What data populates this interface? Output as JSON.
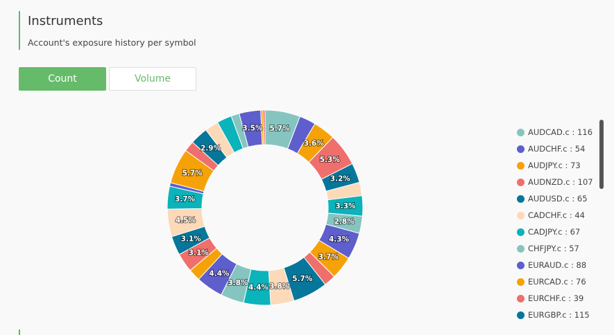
{
  "header": {
    "title": "Instruments",
    "subtitle": "Account's exposure history per symbol"
  },
  "tabs": [
    {
      "label": "Count",
      "active": true
    },
    {
      "label": "Volume",
      "active": false
    }
  ],
  "chart_data": {
    "type": "pie",
    "variant": "donut",
    "legend_position": "right",
    "slices": [
      {
        "label": "AUDCAD.c",
        "value": 116,
        "pct": "5.7%",
        "color": "#86c5bf"
      },
      {
        "label": "AUDCHF.c",
        "value": 54,
        "pct": "",
        "color": "#5e5ecc"
      },
      {
        "label": "AUDJPY.c",
        "value": 73,
        "pct": "3.6%",
        "color": "#f5a209"
      },
      {
        "label": "AUDNZD.c",
        "value": 107,
        "pct": "5.3%",
        "color": "#ef6f6c"
      },
      {
        "label": "AUDUSD.c",
        "value": 65,
        "pct": "3.2%",
        "color": "#06779a"
      },
      {
        "label": "CADCHF.c",
        "value": 44,
        "pct": "",
        "color": "#fcd9b9"
      },
      {
        "label": "CADJPY.c",
        "value": 67,
        "pct": "3.3%",
        "color": "#0bb3bb"
      },
      {
        "label": "CHFJPY.c",
        "value": 57,
        "pct": "2.8%",
        "color": "#86c5bf"
      },
      {
        "label": "EURAUD.c",
        "value": 88,
        "pct": "4.3%",
        "color": "#5e5ecc"
      },
      {
        "label": "EURCAD.c",
        "value": 76,
        "pct": "3.7%",
        "color": "#f5a209"
      },
      {
        "label": "EURCHF.c",
        "value": 39,
        "pct": "",
        "color": "#ef6f6c"
      },
      {
        "label": "EURGBP.c",
        "value": 115,
        "pct": "5.7%",
        "color": "#06779a"
      },
      {
        "label": "",
        "value": 77,
        "pct": "3.8%",
        "color": "#fcd9b9"
      },
      {
        "label": "",
        "value": 89,
        "pct": "4.4%",
        "color": "#0bb3bb"
      },
      {
        "label": "",
        "value": 77,
        "pct": "3.8%",
        "color": "#86c5bf"
      },
      {
        "label": "",
        "value": 89,
        "pct": "4.4%",
        "color": "#5e5ecc"
      },
      {
        "label": "",
        "value": 40,
        "pct": "",
        "color": "#f5a209"
      },
      {
        "label": "",
        "value": 63,
        "pct": "3.1%",
        "color": "#ef6f6c"
      },
      {
        "label": "",
        "value": 63,
        "pct": "3.1%",
        "color": "#06779a"
      },
      {
        "label": "",
        "value": 91,
        "pct": "4.5%",
        "color": "#fcd9b9"
      },
      {
        "label": "",
        "value": 75,
        "pct": "3.7%",
        "color": "#0bb3bb"
      },
      {
        "label": "",
        "value": 12,
        "pct": "",
        "color": "#5e5ecc"
      },
      {
        "label": "",
        "value": 116,
        "pct": "5.7%",
        "color": "#f5a209"
      },
      {
        "label": "",
        "value": 35,
        "pct": "",
        "color": "#ef6f6c"
      },
      {
        "label": "",
        "value": 59,
        "pct": "2.9%",
        "color": "#06779a"
      },
      {
        "label": "",
        "value": 45,
        "pct": "",
        "color": "#fcd9b9"
      },
      {
        "label": "",
        "value": 49,
        "pct": "",
        "color": "#0bb3bb"
      },
      {
        "label": "",
        "value": 27,
        "pct": "",
        "color": "#86c5bf"
      },
      {
        "label": "",
        "value": 71,
        "pct": "3.5%",
        "color": "#5e5ecc"
      },
      {
        "label": "",
        "value": 7,
        "pct": "",
        "color": "#f5a209"
      },
      {
        "label": "",
        "value": 7,
        "pct": "",
        "color": "#ef6f6c"
      }
    ]
  },
  "legend_items": [
    {
      "label": "AUDCAD.c : 116",
      "color": "#86c5bf"
    },
    {
      "label": "AUDCHF.c : 54",
      "color": "#5e5ecc"
    },
    {
      "label": "AUDJPY.c : 73",
      "color": "#f5a209"
    },
    {
      "label": "AUDNZD.c : 107",
      "color": "#ef6f6c"
    },
    {
      "label": "AUDUSD.c : 65",
      "color": "#06779a"
    },
    {
      "label": "CADCHF.c : 44",
      "color": "#fcd9b9"
    },
    {
      "label": "CADJPY.c : 67",
      "color": "#0bb3bb"
    },
    {
      "label": "CHFJPY.c : 57",
      "color": "#86c5bf"
    },
    {
      "label": "EURAUD.c : 88",
      "color": "#5e5ecc"
    },
    {
      "label": "EURCAD.c : 76",
      "color": "#f5a209"
    },
    {
      "label": "EURCHF.c : 39",
      "color": "#ef6f6c"
    },
    {
      "label": "EURGBP.c : 115",
      "color": "#06779a"
    }
  ]
}
